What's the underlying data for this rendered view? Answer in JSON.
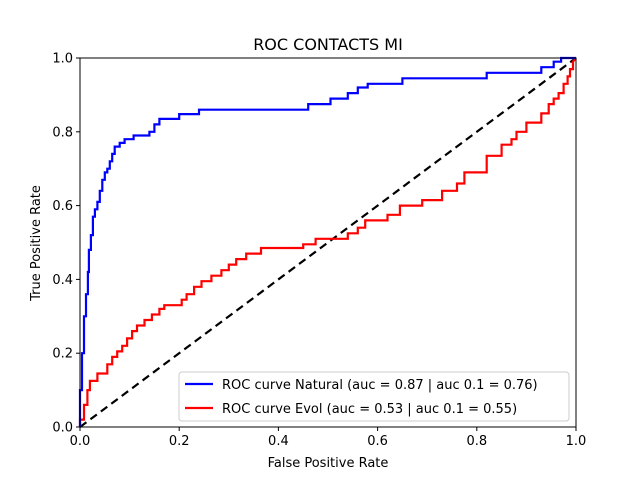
{
  "chart_data": {
    "type": "line",
    "title": "ROC CONTACTS MI",
    "xlabel": "False Positive Rate",
    "ylabel": "True Positive Rate",
    "xlim": [
      0,
      1
    ],
    "ylim": [
      0,
      1
    ],
    "xticks": [
      "0.0",
      "0.2",
      "0.4",
      "0.6",
      "0.8",
      "1.0"
    ],
    "yticks": [
      "0.0",
      "0.2",
      "0.4",
      "0.6",
      "0.8",
      "1.0"
    ],
    "grid": false,
    "legend_position": "bottom-right",
    "series": [
      {
        "name": "ROC curve  Natural (auc = 0.87 | auc 0.1 = 0.76)",
        "color": "#0000ff",
        "x": [
          0.0,
          0.0,
          0.004,
          0.004,
          0.008,
          0.008,
          0.012,
          0.012,
          0.016,
          0.016,
          0.018,
          0.018,
          0.022,
          0.022,
          0.026,
          0.026,
          0.03,
          0.03,
          0.035,
          0.035,
          0.04,
          0.04,
          0.045,
          0.045,
          0.05,
          0.05,
          0.055,
          0.055,
          0.06,
          0.06,
          0.065,
          0.065,
          0.07,
          0.07,
          0.08,
          0.08,
          0.09,
          0.09,
          0.108,
          0.108,
          0.14,
          0.14,
          0.15,
          0.15,
          0.16,
          0.16,
          0.2,
          0.2,
          0.24,
          0.24,
          0.46,
          0.46,
          0.505,
          0.505,
          0.54,
          0.54,
          0.56,
          0.56,
          0.58,
          0.58,
          0.65,
          0.65,
          0.82,
          0.82,
          0.93,
          0.93,
          0.955,
          0.955,
          0.97,
          0.97,
          1.0
        ],
        "y": [
          0.0,
          0.1,
          0.1,
          0.2,
          0.2,
          0.3,
          0.3,
          0.36,
          0.36,
          0.42,
          0.42,
          0.48,
          0.48,
          0.52,
          0.52,
          0.57,
          0.57,
          0.59,
          0.59,
          0.61,
          0.61,
          0.64,
          0.64,
          0.67,
          0.67,
          0.69,
          0.69,
          0.7,
          0.7,
          0.72,
          0.72,
          0.74,
          0.74,
          0.76,
          0.76,
          0.77,
          0.77,
          0.78,
          0.78,
          0.79,
          0.79,
          0.8,
          0.8,
          0.82,
          0.82,
          0.835,
          0.835,
          0.848,
          0.848,
          0.86,
          0.86,
          0.875,
          0.875,
          0.89,
          0.89,
          0.905,
          0.905,
          0.92,
          0.92,
          0.93,
          0.93,
          0.945,
          0.945,
          0.96,
          0.96,
          0.975,
          0.975,
          0.99,
          0.99,
          1.0,
          1.0
        ]
      },
      {
        "name": "ROC curve  Evol (auc = 0.53 | auc 0.1 = 0.55)",
        "color": "#ff0000",
        "x": [
          0.0,
          0.0,
          0.008,
          0.008,
          0.015,
          0.015,
          0.02,
          0.02,
          0.035,
          0.035,
          0.055,
          0.055,
          0.065,
          0.065,
          0.075,
          0.075,
          0.085,
          0.085,
          0.095,
          0.095,
          0.105,
          0.105,
          0.115,
          0.115,
          0.13,
          0.13,
          0.145,
          0.145,
          0.16,
          0.16,
          0.17,
          0.17,
          0.205,
          0.205,
          0.215,
          0.215,
          0.23,
          0.23,
          0.245,
          0.245,
          0.265,
          0.265,
          0.285,
          0.285,
          0.3,
          0.3,
          0.315,
          0.315,
          0.335,
          0.335,
          0.365,
          0.365,
          0.38,
          0.38,
          0.4,
          0.4,
          0.45,
          0.45,
          0.475,
          0.475,
          0.52,
          0.52,
          0.54,
          0.54,
          0.56,
          0.56,
          0.575,
          0.575,
          0.62,
          0.62,
          0.645,
          0.645,
          0.69,
          0.69,
          0.73,
          0.73,
          0.76,
          0.76,
          0.775,
          0.775,
          0.82,
          0.82,
          0.85,
          0.85,
          0.87,
          0.87,
          0.88,
          0.88,
          0.9,
          0.9,
          0.93,
          0.93,
          0.945,
          0.945,
          0.955,
          0.955,
          0.965,
          0.965,
          0.975,
          0.975,
          0.983,
          0.983,
          0.988,
          0.988,
          0.994,
          0.994,
          1.0
        ],
        "y": [
          0.0,
          0.02,
          0.02,
          0.06,
          0.06,
          0.1,
          0.1,
          0.125,
          0.125,
          0.145,
          0.145,
          0.17,
          0.17,
          0.19,
          0.19,
          0.205,
          0.205,
          0.22,
          0.22,
          0.24,
          0.24,
          0.26,
          0.26,
          0.275,
          0.275,
          0.29,
          0.29,
          0.305,
          0.305,
          0.32,
          0.32,
          0.33,
          0.33,
          0.345,
          0.345,
          0.36,
          0.36,
          0.38,
          0.38,
          0.395,
          0.395,
          0.41,
          0.41,
          0.425,
          0.425,
          0.44,
          0.44,
          0.455,
          0.455,
          0.47,
          0.47,
          0.485,
          0.485,
          0.485,
          0.485,
          0.485,
          0.485,
          0.495,
          0.495,
          0.51,
          0.51,
          0.51,
          0.51,
          0.525,
          0.525,
          0.54,
          0.54,
          0.56,
          0.56,
          0.575,
          0.575,
          0.6,
          0.6,
          0.615,
          0.615,
          0.64,
          0.64,
          0.66,
          0.66,
          0.69,
          0.69,
          0.735,
          0.735,
          0.765,
          0.765,
          0.78,
          0.78,
          0.8,
          0.8,
          0.825,
          0.825,
          0.85,
          0.85,
          0.875,
          0.875,
          0.89,
          0.89,
          0.905,
          0.905,
          0.93,
          0.93,
          0.95,
          0.95,
          0.97,
          0.97,
          0.99,
          1.0
        ]
      },
      {
        "name": "",
        "color": "#000000",
        "style": "dashed",
        "x": [
          0,
          1
        ],
        "y": [
          0,
          1
        ]
      }
    ]
  }
}
